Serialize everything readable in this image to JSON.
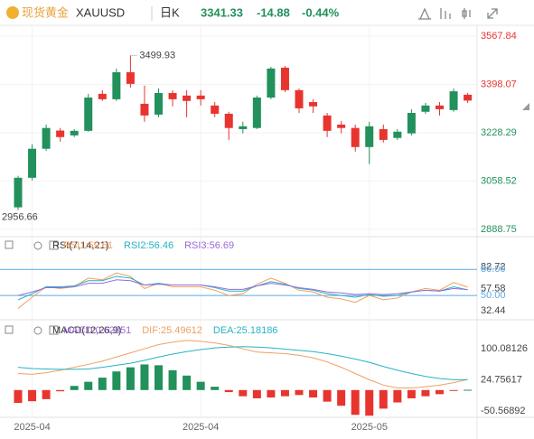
{
  "header": {
    "name": "现货黄金",
    "symbol": "XAUUSD",
    "period": "日K",
    "price": "3341.33",
    "change": "-14.88",
    "change_pct": "-0.44%"
  },
  "chart_data": [
    {
      "type": "candlestick",
      "up_color": "#22915c",
      "down_color": "#e8342f",
      "grid": true,
      "open": [
        2966,
        3070,
        3172,
        3236,
        3219,
        3235,
        3365,
        3346,
        3441,
        3330,
        3292,
        3368,
        3359,
        3359,
        3324,
        3295,
        3241,
        3245,
        3352,
        3457,
        3378,
        3336,
        3289,
        3257,
        3245,
        3178,
        3241,
        3210,
        3226,
        3302,
        3324,
        3308,
        3362
      ],
      "high": [
        3077,
        3188,
        3257,
        3245,
        3241,
        3365,
        3378,
        3454,
        3499.93,
        3394,
        3384,
        3378,
        3378,
        3378,
        3336,
        3302,
        3267,
        3359,
        3460,
        3463,
        3384,
        3346,
        3298,
        3270,
        3257,
        3267,
        3257,
        3241,
        3311,
        3333,
        3336,
        3384,
        3368
      ],
      "low": [
        2956.66,
        3061,
        3165,
        3197,
        3213,
        3232,
        3340,
        3340,
        3387,
        3267,
        3283,
        3321,
        3283,
        3324,
        3283,
        3203,
        3226,
        3241,
        3346,
        3371,
        3298,
        3298,
        3213,
        3226,
        3162,
        3118,
        3194,
        3203,
        3219,
        3295,
        3289,
        3302,
        3333
      ],
      "close": [
        3070,
        3172,
        3245,
        3213,
        3235,
        3352,
        3346,
        3441,
        3400,
        3289,
        3368,
        3346,
        3340,
        3346,
        3295,
        3245,
        3251,
        3352,
        3454,
        3378,
        3314,
        3321,
        3235,
        3245,
        3178,
        3251,
        3203,
        3232,
        3298,
        3324,
        3311,
        3374,
        3341.33
      ],
      "ylim": [
        2863,
        3606
      ],
      "yticks": [
        3567.84,
        3398.07,
        3228.29,
        3058.52,
        2888.75
      ]
    },
    {
      "type": "line",
      "title": "RSI(7,14,21)",
      "ylim": [
        24,
        97
      ],
      "yticks": [
        82.72,
        57.58,
        32.44
      ],
      "ref_lines": [
        {
          "value": 80,
          "label": "80.00"
        },
        {
          "value": 50,
          "label": "50.00"
        }
      ],
      "ref_color": "#5aa9e6",
      "series": [
        {
          "name": "RSI1:59.61",
          "color": "#f0a060",
          "values": [
            35,
            48,
            60,
            58,
            60,
            70,
            68,
            76,
            72,
            58,
            64,
            60,
            60,
            60,
            56,
            50,
            52,
            63,
            70,
            64,
            56,
            54,
            48,
            46,
            42,
            50,
            45,
            47,
            54,
            58,
            56,
            65,
            59.61
          ]
        },
        {
          "name": "RSI2:56.46",
          "color": "#26b3c4",
          "values": [
            45,
            52,
            60,
            60,
            61,
            67,
            67,
            72,
            70,
            62,
            64,
            62,
            62,
            62,
            59,
            55,
            55,
            61,
            66,
            63,
            58,
            56,
            52,
            50,
            48,
            51,
            49,
            50,
            54,
            56,
            55,
            60,
            56.46
          ]
        },
        {
          "name": "RSI3:56.69",
          "color": "#9a6ad6",
          "values": [
            50,
            54,
            59,
            59,
            60,
            64,
            64,
            68,
            67,
            62,
            63,
            62,
            62,
            62,
            60,
            57,
            57,
            61,
            64,
            62,
            59,
            57,
            54,
            53,
            51,
            52,
            51,
            52,
            54,
            56,
            55,
            58,
            56.69
          ]
        }
      ]
    },
    {
      "type": "macd",
      "title": "MACD(12,26,9)",
      "ylim": [
        -66,
        122
      ],
      "yticks": [
        100.08126,
        24.75617,
        -50.56892
      ],
      "categories": [
        null,
        "2025-04",
        null,
        null,
        null,
        null,
        null,
        null,
        null,
        null,
        null,
        null,
        null,
        "2025-04",
        null,
        null,
        null,
        null,
        null,
        null,
        null,
        null,
        null,
        null,
        null,
        "2025-05",
        null,
        null,
        null,
        null,
        null,
        null,
        null
      ],
      "bars": {
        "name": "MACD:0.62851",
        "color": "#9a6ad6",
        "up_color": "#22915c",
        "down_color": "#e8342f",
        "values": [
          -31,
          -27,
          -22,
          -3,
          10,
          20,
          30,
          45,
          55,
          62,
          60,
          48,
          35,
          20,
          8,
          -5,
          -15,
          -20,
          -18,
          -15,
          -12,
          -18,
          -28,
          -38,
          -60,
          -62,
          -45,
          -30,
          -20,
          -15,
          -10,
          -2,
          0.62851
        ]
      },
      "series": [
        {
          "name": "DIF:25.49612",
          "color": "#f0a060",
          "values": [
            40,
            38,
            42,
            48,
            55,
            62,
            70,
            80,
            90,
            100,
            110,
            116,
            120,
            118,
            114,
            108,
            100,
            92,
            90,
            88,
            84,
            78,
            68,
            55,
            40,
            25,
            12,
            5,
            5,
            8,
            12,
            18,
            25.49612
          ]
        },
        {
          "name": "DEA:25.18186",
          "color": "#26b3c4",
          "values": [
            55,
            52,
            51,
            50,
            50,
            51,
            55,
            60,
            65,
            72,
            80,
            87,
            93,
            98,
            102,
            104,
            105,
            104,
            102,
            99,
            96,
            93,
            88,
            82,
            75,
            67,
            57,
            48,
            40,
            33,
            28,
            25,
            25.18186
          ]
        }
      ]
    }
  ]
}
